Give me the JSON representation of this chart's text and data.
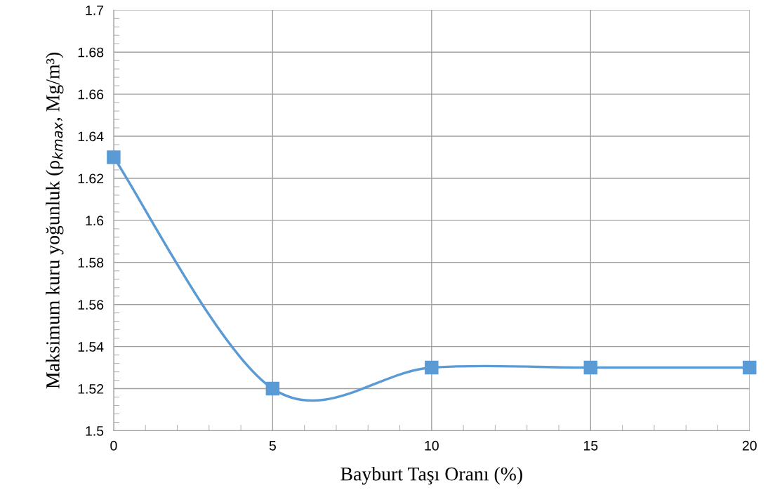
{
  "chart_data": {
    "type": "line",
    "xlabel": "Bayburt Taşı Oranı (%)",
    "ylabel": "Maksimum kuru yoğunluk (ρ$_{kmax}$, Mg/m³)",
    "x": [
      0,
      5,
      10,
      15,
      20
    ],
    "series": [
      {
        "color": "#5b9bd5",
        "values": [
          1.63,
          1.52,
          1.53,
          1.53,
          1.53
        ]
      }
    ],
    "xlim": [
      0,
      20
    ],
    "xticks": [
      0,
      5,
      10,
      15,
      20
    ],
    "ylim": [
      1.5,
      1.7
    ],
    "yticks": [
      1.5,
      1.52,
      1.54,
      1.56,
      1.58,
      1.6,
      1.62,
      1.64,
      1.66,
      1.68,
      1.7
    ],
    "grid": true,
    "marker": "square",
    "line_style": "solid"
  }
}
